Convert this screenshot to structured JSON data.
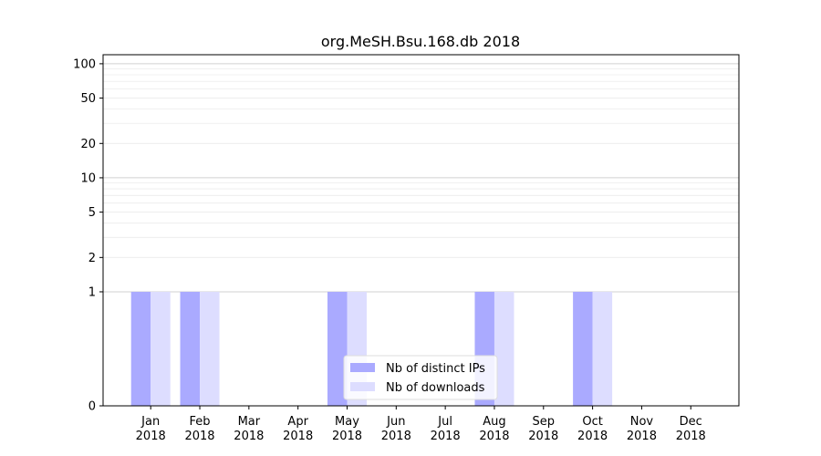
{
  "chart_data": {
    "type": "bar",
    "title": "org.MeSH.Bsu.168.db 2018",
    "xlabel": "",
    "ylabel": "",
    "y_scale": "symlog",
    "ylim": [
      0,
      120
    ],
    "y_ticks": [
      0,
      1,
      2,
      5,
      10,
      20,
      50,
      100
    ],
    "y_tick_labels": [
      "0",
      "1",
      "2",
      "5",
      "10",
      "20",
      "50",
      "100"
    ],
    "grid": true,
    "legend_position": "bottom-center",
    "categories": [
      {
        "month": "Jan",
        "year": "2018"
      },
      {
        "month": "Feb",
        "year": "2018"
      },
      {
        "month": "Mar",
        "year": "2018"
      },
      {
        "month": "Apr",
        "year": "2018"
      },
      {
        "month": "May",
        "year": "2018"
      },
      {
        "month": "Jun",
        "year": "2018"
      },
      {
        "month": "Jul",
        "year": "2018"
      },
      {
        "month": "Aug",
        "year": "2018"
      },
      {
        "month": "Sep",
        "year": "2018"
      },
      {
        "month": "Oct",
        "year": "2018"
      },
      {
        "month": "Nov",
        "year": "2018"
      },
      {
        "month": "Dec",
        "year": "2018"
      }
    ],
    "series": [
      {
        "name": "Nb of distinct IPs",
        "color": "#aaaaff",
        "values": [
          1,
          1,
          0,
          0,
          1,
          0,
          0,
          1,
          0,
          1,
          0,
          0
        ]
      },
      {
        "name": "Nb of downloads",
        "color": "#ddddff",
        "values": [
          1,
          1,
          0,
          0,
          1,
          0,
          0,
          1,
          0,
          1,
          0,
          0
        ]
      }
    ]
  }
}
